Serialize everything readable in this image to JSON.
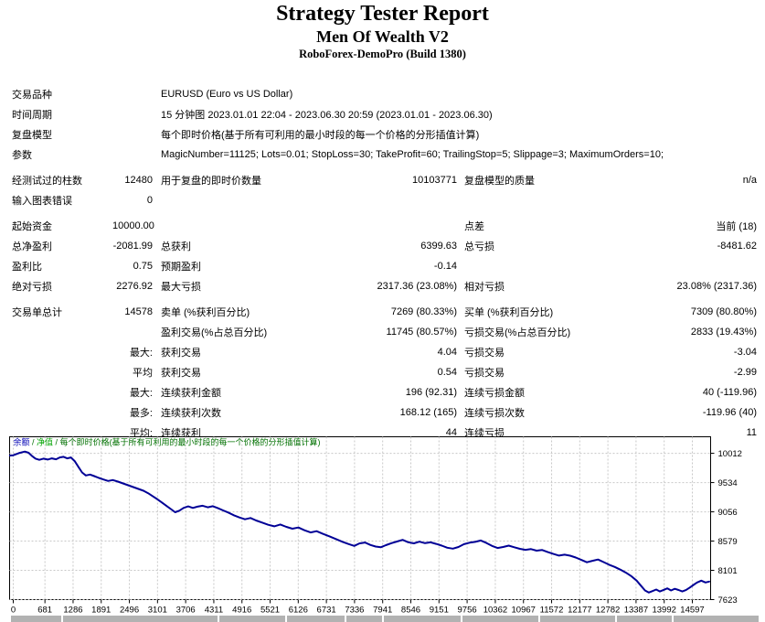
{
  "header": {
    "title": "Strategy Tester Report",
    "ea_name": "Men Of Wealth V2",
    "server": "RoboForex-DemoPro (Build 1380)"
  },
  "report": {
    "rows": [
      {
        "sec": false,
        "c1": "交易品种",
        "wide": "EURUSD (Euro vs US Dollar)"
      },
      {
        "sec": false,
        "c1": "时间周期",
        "wide": "15 分钟图 2023.01.01 22:04 - 2023.06.30 20:59 (2023.01.01 - 2023.06.30)"
      },
      {
        "sec": false,
        "c1": "复盘模型",
        "wide": "每个即时价格(基于所有可利用的最小时段的每一个价格的分形插值计算)"
      },
      {
        "sec": false,
        "c1": "参数",
        "wide": "MagicNumber=11125; Lots=0.01; StopLoss=30; TakeProfit=60; TrailingStop=5; Slippage=3; MaximumOrders=10;"
      },
      {
        "sec": true,
        "c1": "经测试过的柱数",
        "c2": "12480",
        "c3": "用于复盘的即时价数量",
        "c4": "10103771",
        "c5": "复盘模型的质量",
        "c6": "n/a"
      },
      {
        "sec": false,
        "c1": "输入图表错误",
        "c2": "0",
        "c3": "",
        "c4": "",
        "c5": "",
        "c6": ""
      },
      {
        "sec": true,
        "c1": "起始资金",
        "c2": "10000.00",
        "c3": "",
        "c4": "",
        "c5": "点差",
        "c6": "当前 (18)"
      },
      {
        "sec": false,
        "c1": "总净盈利",
        "c2": "-2081.99",
        "c3": "总获利",
        "c4": "6399.63",
        "c5": "总亏损",
        "c6": "-8481.62"
      },
      {
        "sec": false,
        "c1": "盈利比",
        "c2": "0.75",
        "c3": "预期盈利",
        "c4": "-0.14",
        "c5": "",
        "c6": ""
      },
      {
        "sec": false,
        "c1": "绝对亏损",
        "c2": "2276.92",
        "c3": "最大亏损",
        "c4": "2317.36 (23.08%)",
        "c5": "相对亏损",
        "c6": "23.08% (2317.36)"
      },
      {
        "sec": true,
        "c1": "交易单总计",
        "c2": "14578",
        "c3": "卖单 (%获利百分比)",
        "c4": "7269 (80.33%)",
        "c5": "买单 (%获利百分比)",
        "c6": "7309 (80.80%)"
      },
      {
        "sec": false,
        "c1": "",
        "c2": "",
        "c3": "盈利交易(%占总百分比)",
        "c4": "11745 (80.57%)",
        "c5": "亏损交易(%占总百分比)",
        "c6": "2833 (19.43%)"
      },
      {
        "sec": false,
        "c1": "",
        "c2": "最大:",
        "c3": "获利交易",
        "c4": "4.04",
        "c5": "亏损交易",
        "c6": "-3.04"
      },
      {
        "sec": false,
        "c1": "",
        "c2": "平均",
        "c3": "获利交易",
        "c4": "0.54",
        "c5": "亏损交易",
        "c6": "-2.99"
      },
      {
        "sec": false,
        "c1": "",
        "c2": "最大:",
        "c3": "连续获利金额",
        "c4": "196 (92.31)",
        "c5": "连续亏损金额",
        "c6": "40 (-119.96)"
      },
      {
        "sec": false,
        "c1": "",
        "c2": "最多:",
        "c3": "连续获利次数",
        "c4": "168.12 (165)",
        "c5": "连续亏损次数",
        "c6": "-119.96 (40)"
      },
      {
        "sec": false,
        "c1": "",
        "c2": "平均:",
        "c3": "连续获利",
        "c4": "44",
        "c5": "连续亏损",
        "c6": "11"
      }
    ]
  },
  "chart_data": {
    "type": "line",
    "title": "",
    "xlabel": "",
    "ylabel": "",
    "legend": {
      "balance_label": "余额",
      "equity_label": "净值",
      "separator": " / ",
      "model_label": "每个即时价格(基于所有可利用的最小时段的每一个价格的分形插值计算)",
      "balance_color": "#0000b4",
      "equity_color": "#00a400",
      "model_color": "#007000",
      "position": "top-left-inside"
    },
    "grid": "dashed",
    "x_ticks": [
      "0",
      "681",
      "1286",
      "1891",
      "2496",
      "3101",
      "3706",
      "4311",
      "4916",
      "5521",
      "6126",
      "6731",
      "7336",
      "7941",
      "8546",
      "9151",
      "9756",
      "10362",
      "10967",
      "11572",
      "12177",
      "12782",
      "13387",
      "13992",
      "14597"
    ],
    "y_ticks": [
      7623,
      8101,
      8579,
      9056,
      9534,
      10012
    ],
    "xlim": [
      -79,
      14990
    ],
    "ylim": [
      7623,
      10267
    ],
    "series": [
      {
        "name": "余额",
        "color": "#000096",
        "points": [
          [
            -70,
            9975
          ],
          [
            0,
            9980
          ],
          [
            120,
            10015
          ],
          [
            250,
            10040
          ],
          [
            330,
            10020
          ],
          [
            400,
            9970
          ],
          [
            480,
            9925
          ],
          [
            560,
            9905
          ],
          [
            650,
            9925
          ],
          [
            740,
            9910
          ],
          [
            830,
            9930
          ],
          [
            920,
            9915
          ],
          [
            1000,
            9945
          ],
          [
            1080,
            9955
          ],
          [
            1160,
            9930
          ],
          [
            1240,
            9945
          ],
          [
            1320,
            9885
          ],
          [
            1400,
            9790
          ],
          [
            1480,
            9700
          ],
          [
            1560,
            9650
          ],
          [
            1650,
            9665
          ],
          [
            1740,
            9640
          ],
          [
            1840,
            9610
          ],
          [
            1940,
            9585
          ],
          [
            2040,
            9560
          ],
          [
            2140,
            9575
          ],
          [
            2250,
            9550
          ],
          [
            2360,
            9520
          ],
          [
            2470,
            9490
          ],
          [
            2580,
            9460
          ],
          [
            2690,
            9430
          ],
          [
            2800,
            9400
          ],
          [
            2900,
            9360
          ],
          [
            3000,
            9310
          ],
          [
            3100,
            9260
          ],
          [
            3200,
            9205
          ],
          [
            3300,
            9150
          ],
          [
            3400,
            9095
          ],
          [
            3480,
            9050
          ],
          [
            3570,
            9075
          ],
          [
            3660,
            9120
          ],
          [
            3760,
            9145
          ],
          [
            3860,
            9120
          ],
          [
            3960,
            9140
          ],
          [
            4070,
            9155
          ],
          [
            4180,
            9130
          ],
          [
            4290,
            9148
          ],
          [
            4400,
            9115
          ],
          [
            4510,
            9080
          ],
          [
            4620,
            9045
          ],
          [
            4740,
            9000
          ],
          [
            4860,
            8965
          ],
          [
            4980,
            8935
          ],
          [
            5100,
            8955
          ],
          [
            5220,
            8915
          ],
          [
            5350,
            8880
          ],
          [
            5480,
            8845
          ],
          [
            5610,
            8820
          ],
          [
            5740,
            8850
          ],
          [
            5870,
            8810
          ],
          [
            6000,
            8780
          ],
          [
            6130,
            8800
          ],
          [
            6260,
            8755
          ],
          [
            6390,
            8720
          ],
          [
            6520,
            8740
          ],
          [
            6660,
            8695
          ],
          [
            6800,
            8655
          ],
          [
            6940,
            8610
          ],
          [
            7080,
            8565
          ],
          [
            7210,
            8530
          ],
          [
            7330,
            8500
          ],
          [
            7440,
            8540
          ],
          [
            7560,
            8555
          ],
          [
            7680,
            8515
          ],
          [
            7790,
            8490
          ],
          [
            7900,
            8478
          ],
          [
            8010,
            8512
          ],
          [
            8130,
            8545
          ],
          [
            8250,
            8572
          ],
          [
            8370,
            8598
          ],
          [
            8490,
            8560
          ],
          [
            8610,
            8542
          ],
          [
            8730,
            8568
          ],
          [
            8850,
            8545
          ],
          [
            8970,
            8558
          ],
          [
            9090,
            8532
          ],
          [
            9210,
            8505
          ],
          [
            9330,
            8470
          ],
          [
            9450,
            8455
          ],
          [
            9570,
            8482
          ],
          [
            9690,
            8528
          ],
          [
            9810,
            8552
          ],
          [
            9930,
            8565
          ],
          [
            10050,
            8588
          ],
          [
            10170,
            8548
          ],
          [
            10290,
            8500
          ],
          [
            10410,
            8465
          ],
          [
            10530,
            8482
          ],
          [
            10650,
            8505
          ],
          [
            10770,
            8478
          ],
          [
            10890,
            8452
          ],
          [
            11010,
            8435
          ],
          [
            11130,
            8448
          ],
          [
            11250,
            8422
          ],
          [
            11370,
            8432
          ],
          [
            11490,
            8398
          ],
          [
            11610,
            8368
          ],
          [
            11730,
            8342
          ],
          [
            11850,
            8356
          ],
          [
            11970,
            8340
          ],
          [
            12090,
            8310
          ],
          [
            12210,
            8272
          ],
          [
            12330,
            8232
          ],
          [
            12450,
            8256
          ],
          [
            12570,
            8278
          ],
          [
            12690,
            8236
          ],
          [
            12810,
            8192
          ],
          [
            12930,
            8156
          ],
          [
            13050,
            8112
          ],
          [
            13170,
            8062
          ],
          [
            13290,
            8002
          ],
          [
            13400,
            7932
          ],
          [
            13500,
            7842
          ],
          [
            13580,
            7772
          ],
          [
            13660,
            7738
          ],
          [
            13740,
            7762
          ],
          [
            13820,
            7788
          ],
          [
            13900,
            7756
          ],
          [
            13980,
            7782
          ],
          [
            14060,
            7806
          ],
          [
            14140,
            7772
          ],
          [
            14220,
            7800
          ],
          [
            14300,
            7780
          ],
          [
            14380,
            7756
          ],
          [
            14460,
            7778
          ],
          [
            14540,
            7818
          ],
          [
            14620,
            7862
          ],
          [
            14700,
            7902
          ],
          [
            14790,
            7932
          ],
          [
            14880,
            7902
          ],
          [
            14960,
            7918
          ]
        ]
      }
    ]
  }
}
